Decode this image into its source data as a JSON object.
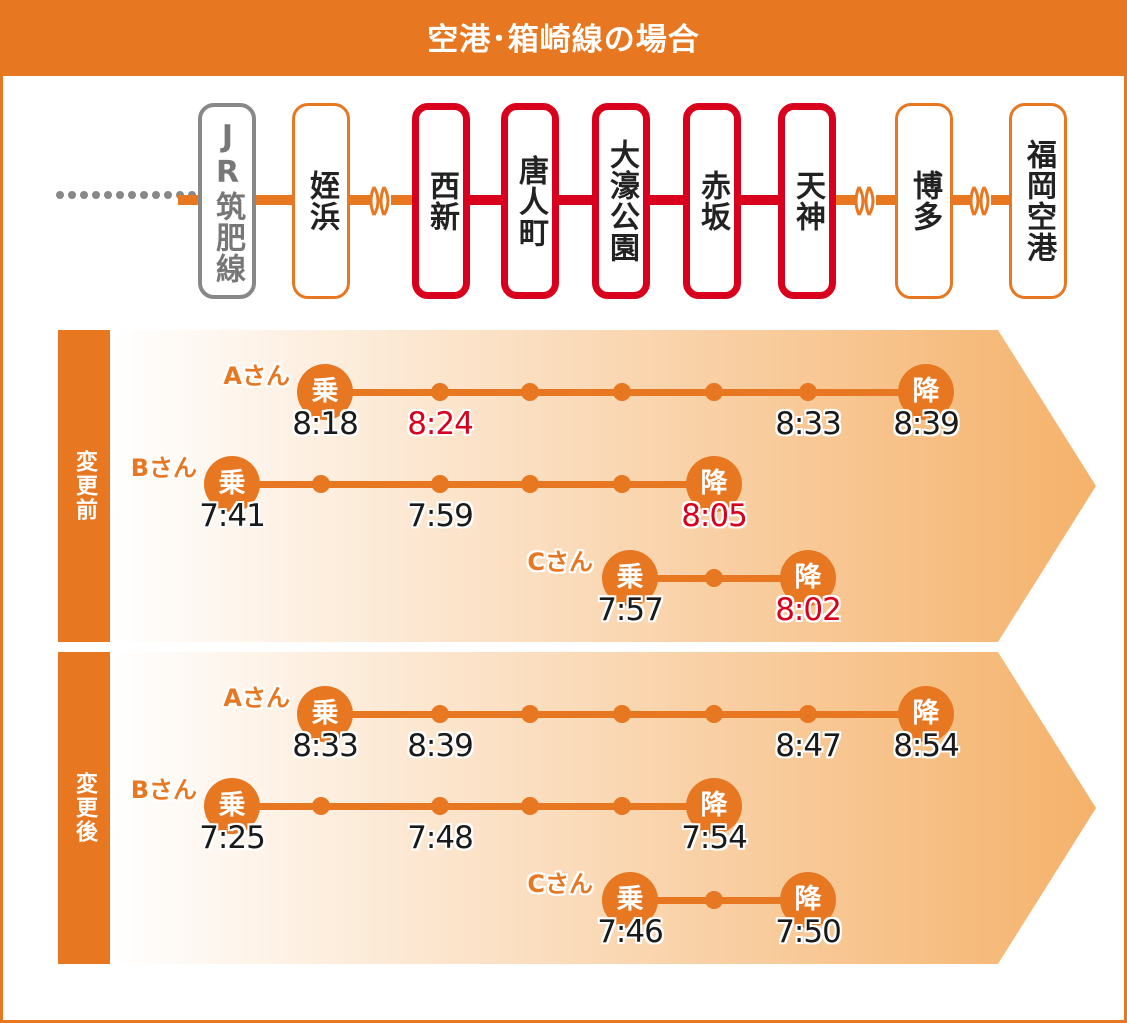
{
  "header": {
    "title": "空港･箱崎線の場合"
  },
  "route": {
    "stations": [
      {
        "name": "JR筑肥線",
        "style": "gray"
      },
      {
        "name": "姪浜",
        "style": "orange"
      },
      {
        "name": "西新",
        "style": "red"
      },
      {
        "name": "唐人町",
        "style": "red"
      },
      {
        "name": "大濠公園",
        "style": "red"
      },
      {
        "name": "赤坂",
        "style": "red"
      },
      {
        "name": "天神",
        "style": "red"
      },
      {
        "name": "博多",
        "style": "orange"
      },
      {
        "name": "福岡空港",
        "style": "orange"
      }
    ]
  },
  "labels": {
    "board": "乗",
    "alight": "降"
  },
  "colors": {
    "orange": "#E87722",
    "red": "#D8001C",
    "gray": "#888888"
  },
  "panels": [
    {
      "label": "変更前",
      "riders": [
        {
          "name": "Aさん",
          "start": 0,
          "end": 6,
          "times": [
            "8:18",
            "8:24",
            "",
            "",
            "",
            "8:33",
            "8:39"
          ],
          "red": [
            1
          ]
        },
        {
          "name": "Bさん",
          "start": 0,
          "end": 5,
          "times": [
            "7:41",
            "",
            "7:59",
            "",
            "",
            "8:05"
          ],
          "red": [
            5
          ]
        },
        {
          "name": "Cさん",
          "start": 0,
          "end": 2,
          "times": [
            "7:57",
            "",
            "8:02"
          ],
          "red": [
            2
          ]
        }
      ]
    },
    {
      "label": "変更後",
      "riders": [
        {
          "name": "Aさん",
          "start": 0,
          "end": 6,
          "times": [
            "8:33",
            "8:39",
            "",
            "",
            "",
            "8:47",
            "8:54"
          ],
          "red": []
        },
        {
          "name": "Bさん",
          "start": 0,
          "end": 5,
          "times": [
            "7:25",
            "",
            "7:48",
            "",
            "",
            "7:54"
          ],
          "red": []
        },
        {
          "name": "Cさん",
          "start": 0,
          "end": 2,
          "times": [
            "7:46",
            "",
            "7:50"
          ],
          "red": []
        }
      ]
    }
  ]
}
